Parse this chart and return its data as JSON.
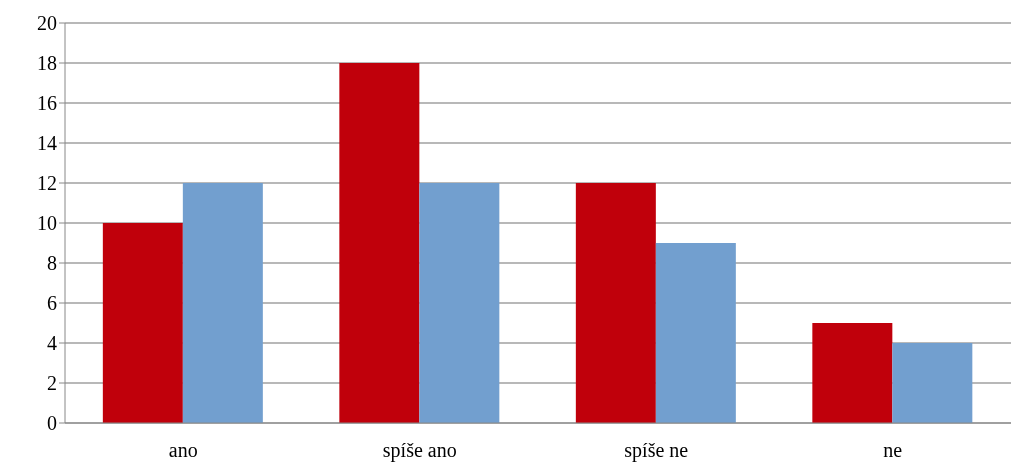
{
  "chart_data": {
    "type": "bar",
    "categories": [
      "ano",
      "spíše ano",
      "spíše ne",
      "ne"
    ],
    "series": [
      {
        "color": "#c0000b",
        "values": [
          10,
          18,
          12,
          5
        ]
      },
      {
        "color": "#729fcf",
        "values": [
          12,
          12,
          9,
          4
        ]
      }
    ],
    "ylim": [
      0,
      20
    ],
    "yticks": [
      0,
      2,
      4,
      6,
      8,
      10,
      12,
      14,
      16,
      18,
      20
    ],
    "grid": "y",
    "legend": false
  }
}
